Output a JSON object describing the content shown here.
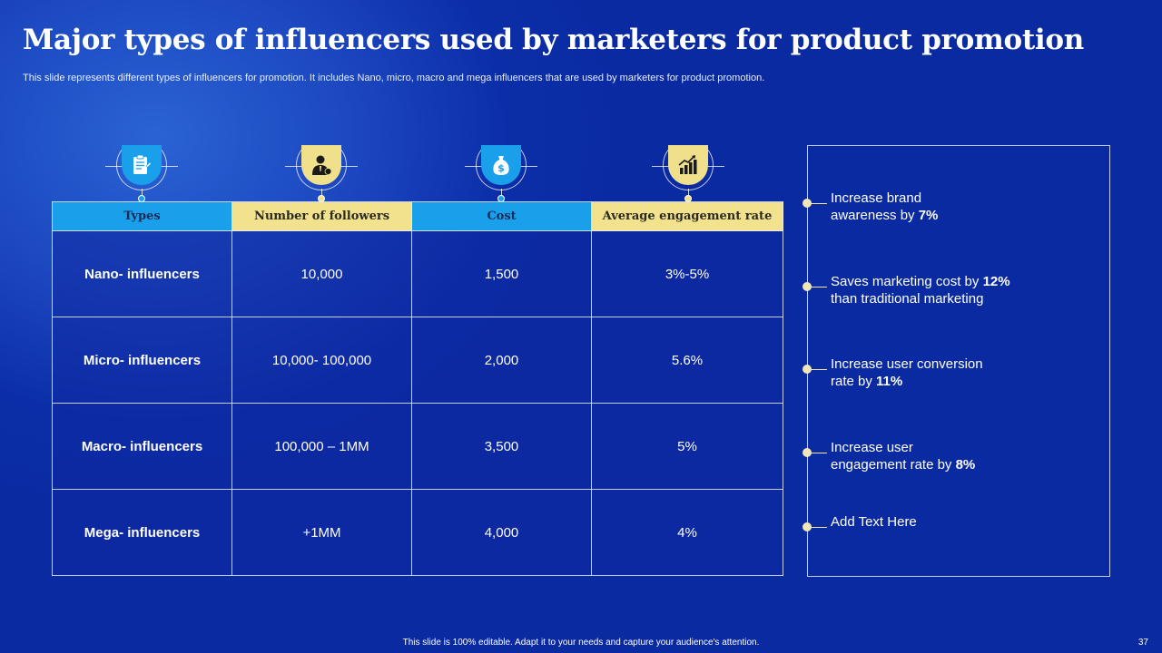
{
  "slide": {
    "title": "Major types of influencers used by marketers for product promotion",
    "subtitle": "This slide represents different types of influencers for promotion. It includes Nano, micro, macro and mega influencers that are used by marketers for product promotion.",
    "footer": "This slide is 100% editable.  Adapt it to your needs and capture your audience's attention.",
    "page_number": "37"
  },
  "colors": {
    "accent_blue": "#1aa0ea",
    "accent_yellow": "#f2e28e",
    "background": "#0b2ea8"
  },
  "icons": [
    "clipboard-icon",
    "businessman-icon",
    "money-bag-icon",
    "growth-chart-icon"
  ],
  "table": {
    "headers": [
      "Types",
      "Number of followers",
      "Cost",
      "Average engagement rate"
    ],
    "rows": [
      [
        "Nano- influencers",
        "10,000",
        "1,500",
        "3%-5%"
      ],
      [
        "Micro- influencers",
        "10,000- 100,000",
        "2,000",
        "5.6%"
      ],
      [
        "Macro- influencers",
        "100,000 – 1MM",
        "3,500",
        "5%"
      ],
      [
        "Mega- influencers",
        "+1MM",
        "4,000",
        "4%"
      ]
    ]
  },
  "benefits": [
    {
      "line1": "Increase brand",
      "line2_pre": "awareness by ",
      "bold": "7%",
      "line2_post": ""
    },
    {
      "line1_pre": "Saves marketing cost by ",
      "line1_bold": "12%",
      "line2": "than traditional marketing"
    },
    {
      "line1": "Increase user conversion",
      "line2_pre": "rate by ",
      "bold": "11%",
      "line2_post": ""
    },
    {
      "line1": "Increase user",
      "line2_pre": "engagement rate by ",
      "bold": "8%",
      "line2_post": ""
    },
    {
      "line1": "Add Text Here"
    }
  ]
}
